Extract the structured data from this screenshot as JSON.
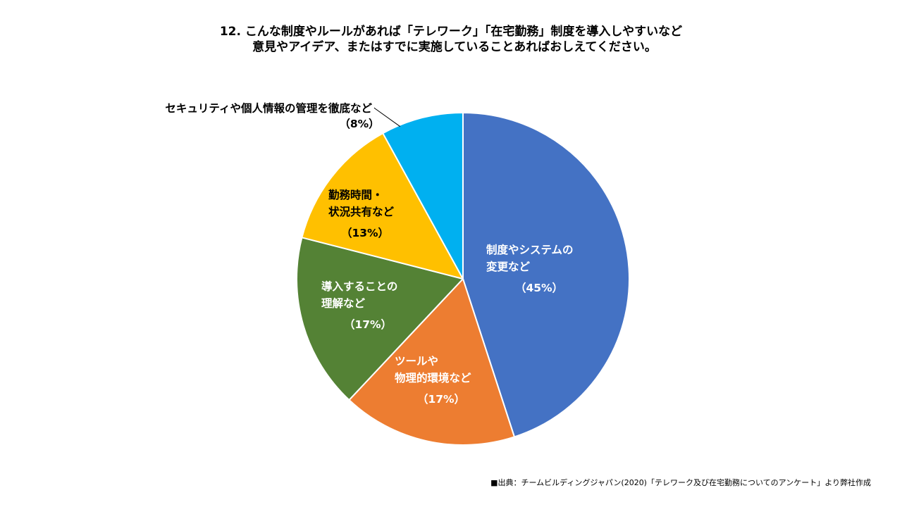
{
  "chart_data": {
    "type": "pie",
    "title_line1": "12. こんな制度やルールがあれば「テレワーク」「在宅勤務」制度を導入しやすいなど",
    "title_line2": "意見やアイデア、またはすでに実施していることあればおしえてください。",
    "start_angle_deg": 0,
    "direction": "clockwise",
    "slices": [
      {
        "label_lines": [
          "制度やシステムの",
          "変更など"
        ],
        "pct_label": "（45%）",
        "value": 45,
        "color": "#4472C4",
        "label_color": "#ffffff"
      },
      {
        "label_lines": [
          "ツールや",
          "物理的環境など"
        ],
        "pct_label": "（17%）",
        "value": 17,
        "color": "#ED7D31",
        "label_color": "#ffffff"
      },
      {
        "label_lines": [
          "導入することの",
          "理解など"
        ],
        "pct_label": "（17%）",
        "value": 17,
        "color": "#548235",
        "label_color": "#ffffff"
      },
      {
        "label_lines": [
          "勤務時間・",
          "状況共有など"
        ],
        "pct_label": "（13%）",
        "value": 13,
        "color": "#FFC000",
        "label_color": "#000000"
      },
      {
        "label_lines": [
          "セキュリティや個人情報の管理を徹底など"
        ],
        "pct_label": "（8%）",
        "value": 8,
        "color": "#00B0F0",
        "label_color": "#000000"
      }
    ]
  },
  "source": "■出典：チームビルディングジャパン(2020)「テレワーク及び在宅勤務についてのアンケート」より弊社作成"
}
